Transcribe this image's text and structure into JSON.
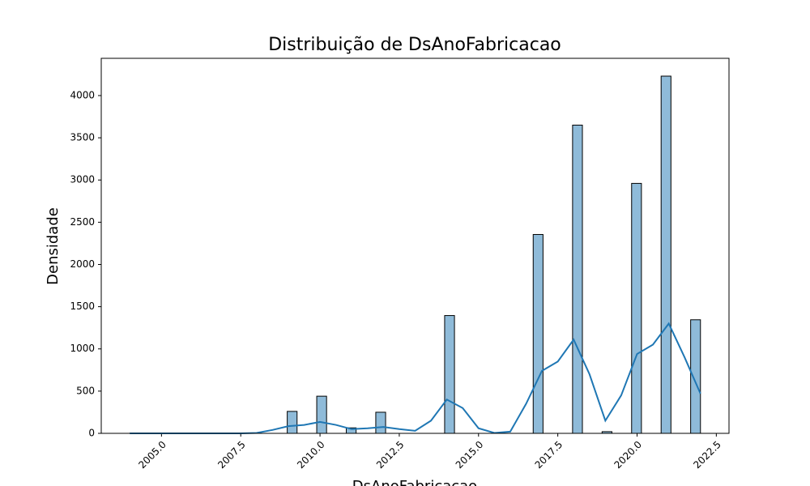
{
  "chart_data": {
    "type": "histogram",
    "title": "Distribuição de DsAnoFabricacao",
    "x_label": "DsAnoFabricacao",
    "y_label": "Densidade",
    "bins": [
      2004,
      2004.31,
      2004.621,
      2004.931,
      2005.241,
      2005.552,
      2005.862,
      2006.172,
      2006.483,
      2006.793,
      2007.103,
      2007.414,
      2007.724,
      2008.034,
      2008.345,
      2008.655,
      2008.966,
      2009.276,
      2009.586,
      2009.897,
      2010.207,
      2010.517,
      2010.828,
      2011.138,
      2011.448,
      2011.759,
      2012.069,
      2012.379,
      2012.69,
      2013.0,
      2013.31,
      2013.621,
      2013.931,
      2014.241,
      2014.552,
      2014.862,
      2015.172,
      2015.483,
      2015.793,
      2016.103,
      2016.414,
      2016.724,
      2017.034,
      2017.345,
      2017.655,
      2017.966,
      2018.276,
      2018.586,
      2018.897,
      2019.207,
      2019.517,
      2019.828,
      2020.138,
      2020.448,
      2020.759,
      2021.069,
      2021.379,
      2021.69,
      2022
    ],
    "values": [
      1,
      0,
      0,
      0,
      0,
      0,
      0,
      0,
      0,
      0,
      0,
      0,
      0,
      0,
      0,
      0,
      260,
      0,
      0,
      440,
      0,
      0,
      65,
      0,
      0,
      250,
      0,
      0,
      0,
      0,
      0,
      0,
      1395,
      0,
      0,
      0,
      0,
      0,
      0,
      0,
      0,
      2355,
      0,
      0,
      0,
      3650,
      0,
      0,
      20,
      0,
      0,
      2960,
      0,
      0,
      4230,
      0,
      0,
      1345
    ],
    "color": "#1f77b4",
    "alpha": 0.5,
    "edgecolor": "#000000",
    "kde": {
      "color": "#1f77b4",
      "x": [
        2004,
        2005,
        2006,
        2007,
        2007.5,
        2008,
        2008.5,
        2009,
        2009.5,
        2010,
        2010.5,
        2011,
        2011.5,
        2012,
        2012.5,
        2013,
        2013.5,
        2014,
        2014.5,
        2015,
        2015.5,
        2016,
        2016.5,
        2017,
        2017.5,
        2018,
        2018.5,
        2019,
        2019.5,
        2020,
        2020.5,
        2021,
        2021.5,
        2022
      ],
      "values": [
        0,
        0,
        0,
        0,
        0,
        5,
        40,
        85,
        100,
        135,
        100,
        50,
        60,
        75,
        50,
        30,
        150,
        400,
        300,
        60,
        5,
        20,
        350,
        740,
        850,
        1110,
        700,
        150,
        450,
        940,
        1050,
        1300,
        900,
        470
      ]
    },
    "xlim": [
      2003.1,
      2022.9
    ],
    "xticks": [
      {
        "value": 2005,
        "label": "2005.0"
      },
      {
        "value": 2007.5,
        "label": "2007.5"
      },
      {
        "value": 2010,
        "label": "2010.0"
      },
      {
        "value": 2012.5,
        "label": "2012.5"
      },
      {
        "value": 2015,
        "label": "2015.0"
      },
      {
        "value": 2017.5,
        "label": "2017.5"
      },
      {
        "value": 2020,
        "label": "2020.0"
      },
      {
        "value": 2022.5,
        "label": "2022.5"
      }
    ],
    "ylim": [
      0,
      4441
    ],
    "yticks": [
      0,
      500,
      1000,
      1500,
      2000,
      2500,
      3000,
      3500,
      4000
    ]
  }
}
